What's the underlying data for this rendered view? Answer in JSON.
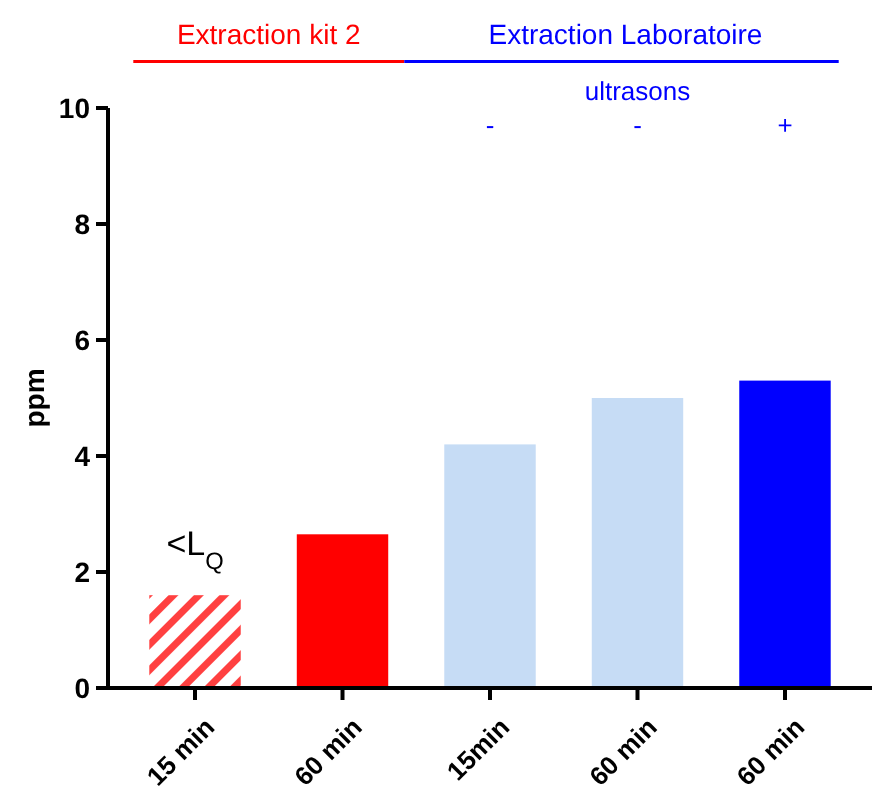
{
  "chart_data": {
    "type": "bar",
    "ylabel": "ppm",
    "categories": [
      "15 min",
      "60 min",
      "15min",
      "60 min",
      "60 min"
    ],
    "values": [
      1.6,
      2.65,
      4.2,
      5.0,
      5.3
    ],
    "colors": [
      "#ff0000",
      "#ff0000",
      "#c6dcf5",
      "#c6dcf5",
      "#0000ff"
    ],
    "ylim": [
      0,
      10
    ],
    "yticks": [
      0,
      2,
      4,
      6,
      8,
      10
    ],
    "annotations": [
      "Extraction kit 2",
      "Extraction Laboratoire",
      "ultrasons",
      "-",
      "-",
      "+",
      "<L$_{Q}$"
    ]
  }
}
